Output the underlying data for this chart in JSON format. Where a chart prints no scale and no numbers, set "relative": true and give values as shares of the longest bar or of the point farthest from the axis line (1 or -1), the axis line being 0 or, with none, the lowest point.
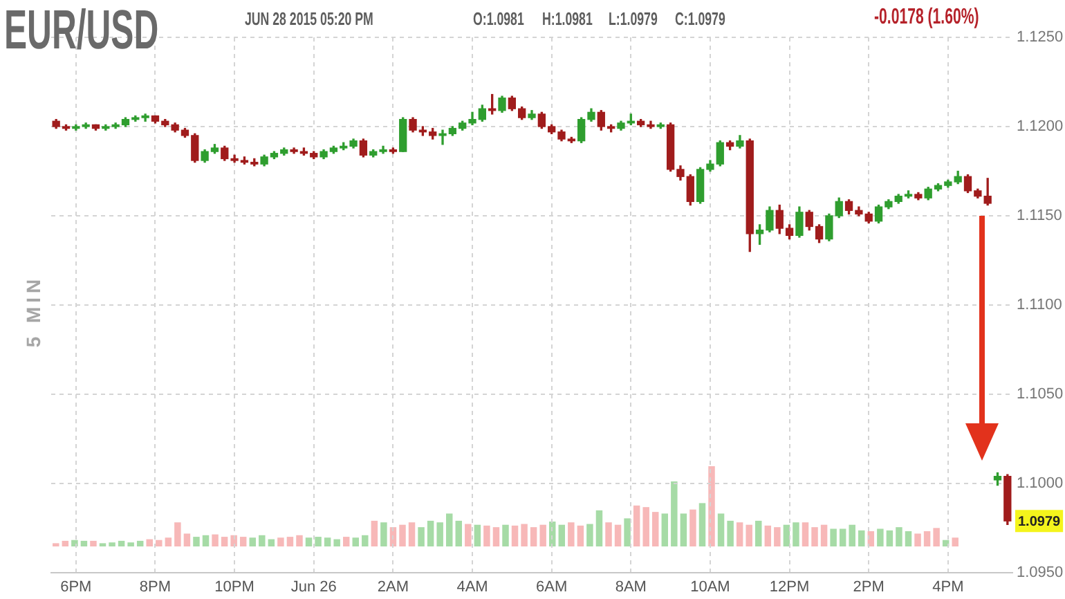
{
  "chart_data": [
    {
      "type": "candlestick",
      "title": "EUR/USD",
      "annotations": [
        "JUN 28 2015 05:20 PM",
        "O:1.0981",
        "H:1.0981",
        "L:1.0979",
        "C:1.0979",
        "-0.0178 (1.60%)",
        "5 MIN",
        {
          "text": "1.0979",
          "y": 1.0979
        }
      ],
      "categories": [
        null,
        null,
        "6PM",
        null,
        null,
        null,
        null,
        null,
        null,
        null,
        "8PM",
        null,
        null,
        null,
        null,
        null,
        null,
        null,
        "10PM",
        null,
        null,
        null,
        null,
        null,
        null,
        null,
        "Jun 26",
        null,
        null,
        null,
        null,
        null,
        null,
        null,
        "2AM",
        null,
        null,
        null,
        null,
        null,
        null,
        null,
        "4AM",
        null,
        null,
        null,
        null,
        null,
        null,
        null,
        "6AM",
        null,
        null,
        null,
        null,
        null,
        null,
        null,
        "8AM",
        null,
        null,
        null,
        null,
        null,
        null,
        null,
        "10AM",
        null,
        null,
        null,
        null,
        null,
        null,
        null,
        "12PM",
        null,
        null,
        null,
        null,
        null,
        null,
        null,
        "2PM",
        null,
        null,
        null,
        null,
        null,
        null,
        null,
        "4PM",
        null,
        null,
        null,
        null,
        null,
        null
      ],
      "ohlc": [
        [
          1.1203,
          1.1204,
          1.1199,
          1.12
        ],
        [
          1.12,
          1.1201,
          1.1198,
          1.1199
        ],
        [
          1.1199,
          1.1201,
          1.1198,
          1.12
        ],
        [
          1.12,
          1.1202,
          1.1199,
          1.1201
        ],
        [
          1.1201,
          1.1201,
          1.1198,
          1.1199
        ],
        [
          1.1199,
          1.1201,
          1.1198,
          1.12
        ],
        [
          1.12,
          1.1202,
          1.1199,
          1.1201
        ],
        [
          1.1201,
          1.1205,
          1.12,
          1.1204
        ],
        [
          1.1204,
          1.1206,
          1.1203,
          1.1205
        ],
        [
          1.1205,
          1.1207,
          1.1203,
          1.1206
        ],
        [
          1.1206,
          1.1206,
          1.1202,
          1.1203
        ],
        [
          1.1203,
          1.1204,
          1.12,
          1.1201
        ],
        [
          1.1201,
          1.1202,
          1.1197,
          1.1198
        ],
        [
          1.1198,
          1.1199,
          1.1194,
          1.1195
        ],
        [
          1.1195,
          1.1196,
          1.118,
          1.1181
        ],
        [
          1.1181,
          1.1187,
          1.118,
          1.1186
        ],
        [
          1.1186,
          1.119,
          1.1185,
          1.1188
        ],
        [
          1.1188,
          1.1189,
          1.1181,
          1.1182
        ],
        [
          1.1182,
          1.1184,
          1.118,
          1.1181
        ],
        [
          1.1181,
          1.1183,
          1.1179,
          1.118
        ],
        [
          1.118,
          1.1182,
          1.1178,
          1.1179
        ],
        [
          1.1179,
          1.1184,
          1.1178,
          1.1183
        ],
        [
          1.1183,
          1.1186,
          1.1182,
          1.1185
        ],
        [
          1.1185,
          1.1188,
          1.1184,
          1.1187
        ],
        [
          1.1187,
          1.1188,
          1.1185,
          1.1186
        ],
        [
          1.1186,
          1.1188,
          1.1184,
          1.1185
        ],
        [
          1.1185,
          1.1186,
          1.1182,
          1.1183
        ],
        [
          1.1183,
          1.1187,
          1.1182,
          1.1186
        ],
        [
          1.1186,
          1.1189,
          1.1185,
          1.1188
        ],
        [
          1.1188,
          1.1191,
          1.1187,
          1.1189
        ],
        [
          1.1189,
          1.1193,
          1.1188,
          1.1192
        ],
        [
          1.1192,
          1.1193,
          1.1183,
          1.1184
        ],
        [
          1.1184,
          1.1187,
          1.1183,
          1.1186
        ],
        [
          1.1186,
          1.1189,
          1.1185,
          1.1187
        ],
        [
          1.1187,
          1.1188,
          1.1185,
          1.1186
        ],
        [
          1.1186,
          1.1205,
          1.1186,
          1.1204
        ],
        [
          1.1204,
          1.1205,
          1.1197,
          1.1198
        ],
        [
          1.1198,
          1.12,
          1.1195,
          1.1197
        ],
        [
          1.1197,
          1.1199,
          1.1193,
          1.1195
        ],
        [
          1.1195,
          1.1198,
          1.119,
          1.1196
        ],
        [
          1.1196,
          1.12,
          1.1195,
          1.1199
        ],
        [
          1.1199,
          1.1203,
          1.1198,
          1.1202
        ],
        [
          1.1202,
          1.1208,
          1.1201,
          1.1204
        ],
        [
          1.1204,
          1.1212,
          1.1203,
          1.121
        ],
        [
          1.121,
          1.1218,
          1.1207,
          1.1209
        ],
        [
          1.1209,
          1.1217,
          1.1208,
          1.1216
        ],
        [
          1.1216,
          1.1217,
          1.1209,
          1.121
        ],
        [
          1.121,
          1.1211,
          1.1204,
          1.1205
        ],
        [
          1.1205,
          1.1209,
          1.1204,
          1.1207
        ],
        [
          1.1207,
          1.1208,
          1.1199,
          1.12
        ],
        [
          1.12,
          1.1201,
          1.1196,
          1.1197
        ],
        [
          1.1197,
          1.1198,
          1.1192,
          1.1193
        ],
        [
          1.1193,
          1.1194,
          1.1191,
          1.1192
        ],
        [
          1.1192,
          1.1205,
          1.1191,
          1.1204
        ],
        [
          1.1204,
          1.121,
          1.1203,
          1.1208
        ],
        [
          1.1208,
          1.1209,
          1.1198,
          1.12
        ],
        [
          1.12,
          1.1201,
          1.1197,
          1.1199
        ],
        [
          1.1199,
          1.1203,
          1.1198,
          1.1202
        ],
        [
          1.1202,
          1.1207,
          1.1201,
          1.1203
        ],
        [
          1.1203,
          1.1204,
          1.12,
          1.1201
        ],
        [
          1.1201,
          1.1203,
          1.1199,
          1.12
        ],
        [
          1.12,
          1.1202,
          1.1199,
          1.1201
        ],
        [
          1.1201,
          1.1202,
          1.1175,
          1.1176
        ],
        [
          1.1176,
          1.1178,
          1.117,
          1.1172
        ],
        [
          1.1172,
          1.1173,
          1.1156,
          1.1158
        ],
        [
          1.1158,
          1.1177,
          1.1157,
          1.1176
        ],
        [
          1.1176,
          1.1181,
          1.1175,
          1.1179
        ],
        [
          1.1179,
          1.1192,
          1.1178,
          1.1191
        ],
        [
          1.1191,
          1.1192,
          1.1187,
          1.1189
        ],
        [
          1.1189,
          1.1195,
          1.1188,
          1.1192
        ],
        [
          1.1192,
          1.1193,
          1.113,
          1.114
        ],
        [
          1.114,
          1.1145,
          1.1134,
          1.1142
        ],
        [
          1.1142,
          1.1155,
          1.1141,
          1.1153
        ],
        [
          1.1153,
          1.1156,
          1.114,
          1.1143
        ],
        [
          1.1143,
          1.1145,
          1.1137,
          1.1139
        ],
        [
          1.1139,
          1.1155,
          1.1138,
          1.1152
        ],
        [
          1.1152,
          1.1153,
          1.1142,
          1.1144
        ],
        [
          1.1144,
          1.1145,
          1.1135,
          1.1137
        ],
        [
          1.1137,
          1.1151,
          1.1136,
          1.115
        ],
        [
          1.115,
          1.116,
          1.1149,
          1.1158
        ],
        [
          1.1158,
          1.1159,
          1.1151,
          1.1153
        ],
        [
          1.1153,
          1.1155,
          1.115,
          1.1151
        ],
        [
          1.1151,
          1.1152,
          1.1146,
          1.1147
        ],
        [
          1.1147,
          1.1156,
          1.1146,
          1.1155
        ],
        [
          1.1155,
          1.1159,
          1.1154,
          1.1158
        ],
        [
          1.1158,
          1.1162,
          1.1157,
          1.1161
        ],
        [
          1.1161,
          1.1164,
          1.116,
          1.1162
        ],
        [
          1.1162,
          1.1163,
          1.1159,
          1.116
        ],
        [
          1.116,
          1.1166,
          1.1159,
          1.1165
        ],
        [
          1.1165,
          1.1168,
          1.1164,
          1.1167
        ],
        [
          1.1167,
          1.117,
          1.1166,
          1.1169
        ],
        [
          1.1169,
          1.1175,
          1.1168,
          1.1172
        ],
        [
          1.1172,
          1.1173,
          1.1163,
          1.1164
        ],
        [
          1.1164,
          1.1165,
          1.116,
          1.1161
        ],
        [
          1.1161,
          1.1171,
          1.1156,
          1.1157
        ],
        [
          1.1002,
          1.1006,
          1.0999,
          1.1004
        ],
        [
          1.1004,
          1.1005,
          1.0977,
          1.0979
        ]
      ],
      "colors": [
        "#a01c1c",
        "#a01c1c",
        "#2f9e2f",
        "#2f9e2f",
        "#a01c1c",
        "#2f9e2f",
        "#2f9e2f",
        "#2f9e2f",
        "#2f9e2f",
        "#2f9e2f",
        "#a01c1c",
        "#a01c1c",
        "#a01c1c",
        "#a01c1c",
        "#a01c1c",
        "#2f9e2f",
        "#2f9e2f",
        "#a01c1c",
        "#a01c1c",
        "#a01c1c",
        "#a01c1c",
        "#2f9e2f",
        "#2f9e2f",
        "#2f9e2f",
        "#a01c1c",
        "#a01c1c",
        "#a01c1c",
        "#2f9e2f",
        "#2f9e2f",
        "#2f9e2f",
        "#2f9e2f",
        "#a01c1c",
        "#2f9e2f",
        "#2f9e2f",
        "#a01c1c",
        "#2f9e2f",
        "#a01c1c",
        "#a01c1c",
        "#a01c1c",
        "#2f9e2f",
        "#2f9e2f",
        "#2f9e2f",
        "#2f9e2f",
        "#2f9e2f",
        "#a01c1c",
        "#2f9e2f",
        "#a01c1c",
        "#a01c1c",
        "#2f9e2f",
        "#a01c1c",
        "#a01c1c",
        "#a01c1c",
        "#a01c1c",
        "#2f9e2f",
        "#2f9e2f",
        "#a01c1c",
        "#a01c1c",
        "#2f9e2f",
        "#2f9e2f",
        "#a01c1c",
        "#a01c1c",
        "#2f9e2f",
        "#a01c1c",
        "#a01c1c",
        "#a01c1c",
        "#2f9e2f",
        "#2f9e2f",
        "#2f9e2f",
        "#a01c1c",
        "#2f9e2f",
        "#a01c1c",
        "#2f9e2f",
        "#2f9e2f",
        "#a01c1c",
        "#a01c1c",
        "#2f9e2f",
        "#a01c1c",
        "#a01c1c",
        "#2f9e2f",
        "#2f9e2f",
        "#a01c1c",
        "#a01c1c",
        "#a01c1c",
        "#2f9e2f",
        "#2f9e2f",
        "#2f9e2f",
        "#2f9e2f",
        "#a01c1c",
        "#2f9e2f",
        "#2f9e2f",
        "#2f9e2f",
        "#2f9e2f",
        "#a01c1c",
        "#a01c1c",
        "#a01c1c",
        "#2f9e2f",
        "#a01c1c"
      ],
      "ylim": [
        1.095,
        1.125
      ],
      "yticks": [
        {
          "value": 1.095,
          "label": "1.0950"
        },
        {
          "value": 1.1,
          "label": "1.1000"
        },
        {
          "value": 1.105,
          "label": "1.1050"
        },
        {
          "value": 1.11,
          "label": "1.1100"
        },
        {
          "value": 1.115,
          "label": "1.1150"
        },
        {
          "value": 1.12,
          "label": "1.1200"
        },
        {
          "value": 1.125,
          "label": "1.1250"
        }
      ],
      "grid": true
    },
    {
      "type": "bar",
      "relative": true,
      "categories": [
        null,
        null,
        null,
        null,
        null,
        null,
        null,
        null,
        null,
        null,
        null,
        null,
        null,
        null,
        null,
        null,
        null,
        null,
        null,
        null,
        null,
        null,
        null,
        null,
        null,
        null,
        null,
        null,
        null,
        null,
        null,
        null,
        null,
        null,
        null,
        null,
        null,
        null,
        null,
        null,
        null,
        null,
        null,
        null,
        null,
        null,
        null,
        null,
        null,
        null,
        null,
        null,
        null,
        null,
        null,
        null,
        null,
        null,
        null,
        null,
        null,
        null,
        null,
        null,
        null,
        null,
        null,
        null,
        null,
        null,
        null,
        null,
        null,
        null,
        null,
        null,
        null,
        null,
        null,
        null,
        null,
        null,
        null,
        null,
        null,
        null,
        null,
        null,
        null,
        null,
        null,
        null,
        null,
        null,
        null,
        null,
        null
      ],
      "values": [
        0.04,
        0.07,
        0.08,
        0.07,
        0.07,
        0.04,
        0.05,
        0.07,
        0.05,
        0.07,
        0.09,
        0.08,
        0.11,
        0.3,
        0.16,
        0.12,
        0.14,
        0.15,
        0.12,
        0.14,
        0.12,
        0.11,
        0.14,
        0.09,
        0.11,
        0.12,
        0.14,
        0.11,
        0.12,
        0.11,
        0.09,
        0.12,
        0.11,
        0.14,
        0.32,
        0.3,
        0.24,
        0.27,
        0.3,
        0.24,
        0.32,
        0.3,
        0.41,
        0.32,
        0.28,
        0.27,
        0.26,
        0.24,
        0.27,
        0.26,
        0.28,
        0.24,
        0.27,
        0.31,
        0.27,
        0.3,
        0.26,
        0.28,
        0.45,
        0.3,
        0.27,
        0.35,
        0.51,
        0.49,
        0.43,
        0.41,
        0.81,
        0.41,
        0.46,
        0.54,
        1,
        0.41,
        0.32,
        0.3,
        0.27,
        0.32,
        0.26,
        0.24,
        0.27,
        0.3,
        0.3,
        0.24,
        0.27,
        0.22,
        0.22,
        0.27,
        0.2,
        0.19,
        0.22,
        0.2,
        0.24,
        0.19,
        0.16,
        0.19,
        0.23,
        0.08,
        0.11
      ],
      "colors": [
        "#f7b8b8",
        "#f7b8b8",
        "#a6dba6",
        "#a6dba6",
        "#f7b8b8",
        "#a6dba6",
        "#a6dba6",
        "#a6dba6",
        "#a6dba6",
        "#a6dba6",
        "#f7b8b8",
        "#f7b8b8",
        "#f7b8b8",
        "#f7b8b8",
        "#f7b8b8",
        "#a6dba6",
        "#a6dba6",
        "#f7b8b8",
        "#f7b8b8",
        "#f7b8b8",
        "#f7b8b8",
        "#a6dba6",
        "#a6dba6",
        "#a6dba6",
        "#f7b8b8",
        "#f7b8b8",
        "#f7b8b8",
        "#a6dba6",
        "#a6dba6",
        "#a6dba6",
        "#a6dba6",
        "#f7b8b8",
        "#a6dba6",
        "#a6dba6",
        "#f7b8b8",
        "#a6dba6",
        "#f7b8b8",
        "#f7b8b8",
        "#f7b8b8",
        "#a6dba6",
        "#a6dba6",
        "#a6dba6",
        "#a6dba6",
        "#a6dba6",
        "#f7b8b8",
        "#a6dba6",
        "#f7b8b8",
        "#f7b8b8",
        "#a6dba6",
        "#f7b8b8",
        "#f7b8b8",
        "#f7b8b8",
        "#f7b8b8",
        "#a6dba6",
        "#a6dba6",
        "#f7b8b8",
        "#f7b8b8",
        "#a6dba6",
        "#a6dba6",
        "#f7b8b8",
        "#f7b8b8",
        "#a6dba6",
        "#f7b8b8",
        "#f7b8b8",
        "#f7b8b8",
        "#a6dba6",
        "#a6dba6",
        "#a6dba6",
        "#f7b8b8",
        "#a6dba6",
        "#f7b8b8",
        "#a6dba6",
        "#a6dba6",
        "#f7b8b8",
        "#f7b8b8",
        "#a6dba6",
        "#f7b8b8",
        "#f7b8b8",
        "#a6dba6",
        "#a6dba6",
        "#f7b8b8",
        "#f7b8b8",
        "#f7b8b8",
        "#a6dba6",
        "#a6dba6",
        "#a6dba6",
        "#a6dba6",
        "#f7b8b8",
        "#a6dba6",
        "#a6dba6",
        "#a6dba6",
        "#a6dba6",
        "#f7b8b8",
        "#f7b8b8",
        "#f7b8b8",
        "#a6dba6",
        "#f7b8b8"
      ]
    }
  ]
}
